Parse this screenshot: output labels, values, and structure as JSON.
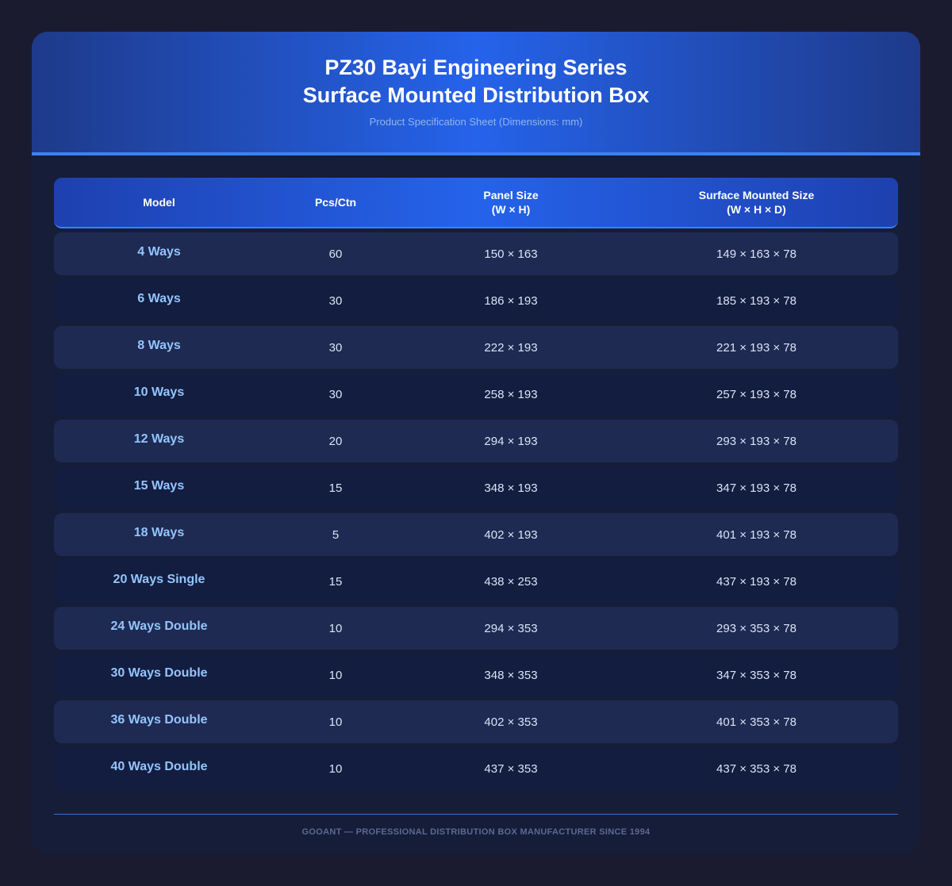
{
  "header": {
    "title_line1": "PZ30 Bayi Engineering Series",
    "title_line2": "Surface Mounted Distribution Box",
    "subtitle": "Product Specification Sheet (Dimensions: mm)"
  },
  "table": {
    "columns": {
      "model": "Model",
      "pcs": "Pcs/Ctn",
      "panel_line1": "Panel Size",
      "panel_line2": "(W × H)",
      "surface_line1": "Surface Mounted Size",
      "surface_line2": "(W × H × D)"
    },
    "rows": [
      {
        "model": "4 Ways",
        "pcs": "60",
        "panel": "150 × 163",
        "surface": "149 × 163 × 78"
      },
      {
        "model": "6 Ways",
        "pcs": "30",
        "panel": "186 × 193",
        "surface": "185 × 193 × 78"
      },
      {
        "model": "8 Ways",
        "pcs": "30",
        "panel": "222 × 193",
        "surface": "221 × 193 × 78"
      },
      {
        "model": "10 Ways",
        "pcs": "30",
        "panel": "258 × 193",
        "surface": "257 × 193 × 78"
      },
      {
        "model": "12 Ways",
        "pcs": "20",
        "panel": "294 × 193",
        "surface": "293 × 193 × 78"
      },
      {
        "model": "15 Ways",
        "pcs": "15",
        "panel": "348 × 193",
        "surface": "347 × 193 × 78"
      },
      {
        "model": "18 Ways",
        "pcs": "5",
        "panel": "402 × 193",
        "surface": "401 × 193 × 78"
      },
      {
        "model": "20 Ways Single",
        "pcs": "15",
        "panel": "438 × 253",
        "surface": "437 × 193 × 78"
      },
      {
        "model": "24 Ways Double",
        "pcs": "10",
        "panel": "294 × 353",
        "surface": "293 × 353 × 78"
      },
      {
        "model": "30 Ways Double",
        "pcs": "10",
        "panel": "348 × 353",
        "surface": "347 × 353 × 78"
      },
      {
        "model": "36 Ways Double",
        "pcs": "10",
        "panel": "402 × 353",
        "surface": "401 × 353 × 78"
      },
      {
        "model": "40 Ways Double",
        "pcs": "10",
        "panel": "437 × 353",
        "surface": "437 × 353 × 78"
      }
    ]
  },
  "footer": {
    "text": "GOOANT — PROFESSIONAL DISTRIBUTION BOX MANUFACTURER SINCE 1994"
  },
  "colors": {
    "page_background": "#1b1b2f",
    "card_background": "#151d38",
    "header_accent": "#2563eb",
    "accent_line": "#3b82f6",
    "model_text": "#93c5fd",
    "row_odd": "#1e2a52",
    "row_even": "#131d40"
  }
}
